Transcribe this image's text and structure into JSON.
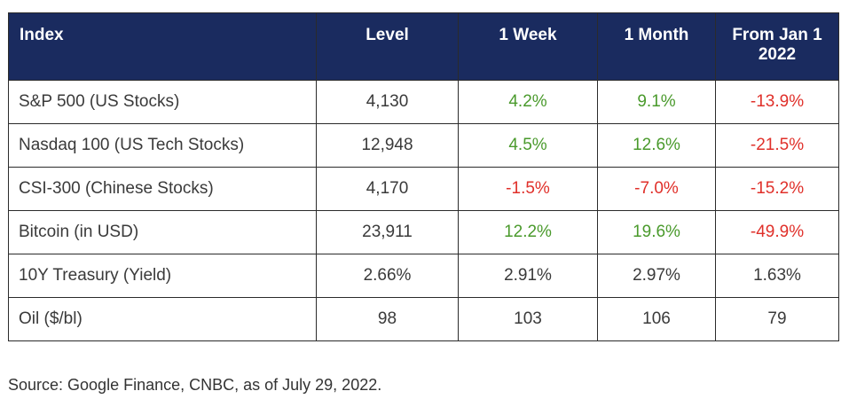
{
  "table": {
    "headers": [
      "Index",
      "Level",
      "1 Week",
      "1 Month",
      "From Jan 1 2022"
    ],
    "rows": [
      {
        "name": "S&P 500 (US Stocks)",
        "level": "4,130",
        "week": "4.2%",
        "month": "9.1%",
        "ytd": "-13.9%",
        "week_color": "pos",
        "month_color": "pos",
        "ytd_color": "neg"
      },
      {
        "name": "Nasdaq 100 (US Tech Stocks)",
        "level": "12,948",
        "week": "4.5%",
        "month": "12.6%",
        "ytd": "-21.5%",
        "week_color": "pos",
        "month_color": "pos",
        "ytd_color": "neg"
      },
      {
        "name": "CSI-300 (Chinese Stocks)",
        "level": "4,170",
        "week": "-1.5%",
        "month": "-7.0%",
        "ytd": "-15.2%",
        "week_color": "neg",
        "month_color": "neg",
        "ytd_color": "neg"
      },
      {
        "name": "Bitcoin (in USD)",
        "level": "23,911",
        "week": "12.2%",
        "month": "19.6%",
        "ytd": "-49.9%",
        "week_color": "pos",
        "month_color": "pos",
        "ytd_color": "neg"
      },
      {
        "name": "10Y Treasury (Yield)",
        "level": "2.66%",
        "week": "2.91%",
        "month": "2.97%",
        "ytd": "1.63%",
        "week_color": "plain",
        "month_color": "plain",
        "ytd_color": "plain"
      },
      {
        "name": "Oil ($/bl)",
        "level": "98",
        "week": "103",
        "month": "106",
        "ytd": "79",
        "week_color": "plain",
        "month_color": "plain",
        "ytd_color": "plain"
      }
    ]
  },
  "source": "Source: Google Finance, CNBC, as of July 29, 2022.",
  "colors": {
    "header_bg": "#1a2b5f",
    "positive": "#4a9a2c",
    "negative": "#e0302a"
  }
}
